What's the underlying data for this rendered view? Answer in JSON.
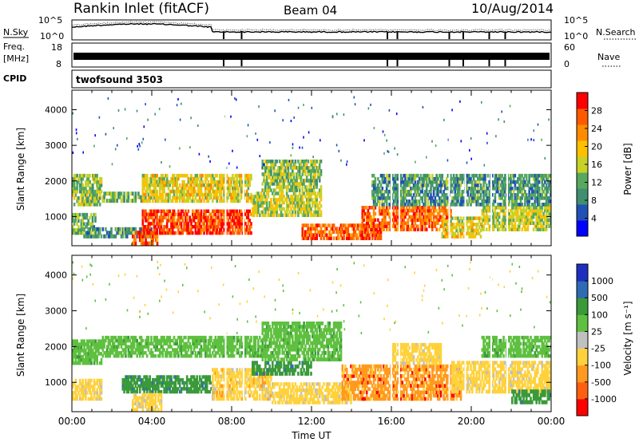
{
  "header": {
    "station": "Rankin Inlet (fitACF)",
    "beam": "Beam 04",
    "date": "10/Aug/2014"
  },
  "panels": {
    "nsky_label": "N.Sky",
    "nsky_ticks": [
      "10^5",
      "10^0"
    ],
    "nsearch_label": "N.Search",
    "freq_label": "Freq.",
    "freq_unit": "[MHz]",
    "freq_ticks": [
      "18",
      "8"
    ],
    "nave_label": "Nave",
    "nave_ticks": [
      "60",
      "0"
    ],
    "cpid_label": "CPID",
    "cpid_value": "twofsound 3503"
  },
  "colors": {
    "power": [
      "#0000ff",
      "#2151b4",
      "#3f8f70",
      "#57a95f",
      "#c8d226",
      "#ffc000",
      "#ff8c00",
      "#ff5a00",
      "#ff0000"
    ],
    "velocity": [
      "#1e2fbf",
      "#2e6bb4",
      "#3a9a3a",
      "#5fc040",
      "#c0c0c0",
      "#ffd23c",
      "#ff9a1e",
      "#ff6010",
      "#ff0000"
    ]
  },
  "chart_data": [
    {
      "type": "heatmap",
      "quantity": "power",
      "ylabel": "Slant Range [km]",
      "xlabel": "",
      "ylim": [
        180,
        4550
      ],
      "y_ticks": [
        "1000",
        "2000",
        "3000",
        "4000"
      ],
      "colorbar_label": "Power [dB]",
      "colorbar_ticks": [
        "4",
        "8",
        "12",
        "16",
        "20",
        "24",
        "28"
      ],
      "colorbar_range": [
        0,
        32
      ],
      "bands": [
        {
          "t0": 0.0,
          "t1": 1.2,
          "r0": 500,
          "r1": 1100,
          "level": 12
        },
        {
          "t0": 0.0,
          "t1": 1.5,
          "r0": 1300,
          "r1": 2200,
          "level": 14
        },
        {
          "t0": 0.5,
          "t1": 4.0,
          "r0": 400,
          "r1": 700,
          "level": 10
        },
        {
          "t0": 1.5,
          "t1": 3.5,
          "r0": 1400,
          "r1": 1700,
          "level": 12
        },
        {
          "t0": 3.0,
          "t1": 4.3,
          "r0": 200,
          "r1": 600,
          "level": 26
        },
        {
          "t0": 3.5,
          "t1": 9.0,
          "r0": 500,
          "r1": 1200,
          "level": 28
        },
        {
          "t0": 3.5,
          "t1": 9.0,
          "r0": 1400,
          "r1": 2200,
          "level": 18
        },
        {
          "t0": 9.0,
          "t1": 12.5,
          "r0": 1000,
          "r1": 1700,
          "level": 16
        },
        {
          "t0": 9.5,
          "t1": 12.5,
          "r0": 1700,
          "r1": 2600,
          "level": 14
        },
        {
          "t0": 11.5,
          "t1": 15.5,
          "r0": 350,
          "r1": 800,
          "level": 26
        },
        {
          "t0": 14.5,
          "t1": 19.0,
          "r0": 600,
          "r1": 1300,
          "level": 26
        },
        {
          "t0": 18.5,
          "t1": 20.5,
          "r0": 400,
          "r1": 1000,
          "level": 18
        },
        {
          "t0": 20.5,
          "t1": 24.0,
          "r0": 600,
          "r1": 1300,
          "level": 16
        },
        {
          "t0": 15.0,
          "t1": 24.0,
          "r0": 1300,
          "r1": 2200,
          "level": 10
        }
      ]
    },
    {
      "type": "heatmap",
      "quantity": "velocity",
      "ylabel": "Slant Range [km]",
      "xlabel": "Time UT",
      "ylim": [
        180,
        4550
      ],
      "y_ticks": [
        "1000",
        "2000",
        "3000",
        "4000"
      ],
      "x_ticks": [
        "00:00",
        "04:00",
        "08:00",
        "12:00",
        "16:00",
        "20:00",
        "00:00"
      ],
      "xlim": [
        0,
        24
      ],
      "colorbar_label": "Velocity [m s⁻¹]",
      "colorbar_ticks": [
        "1000",
        "500",
        "100",
        "25",
        "-25",
        "-100",
        "-500",
        "-1000"
      ],
      "bands": [
        {
          "t0": 0.0,
          "t1": 1.5,
          "r0": 1500,
          "r1": 2200,
          "level": 25
        },
        {
          "t0": 0.0,
          "t1": 1.5,
          "r0": 500,
          "r1": 1100,
          "level": -100
        },
        {
          "t0": 1.5,
          "t1": 9.5,
          "r0": 1700,
          "r1": 2300,
          "level": 25
        },
        {
          "t0": 2.5,
          "t1": 7.0,
          "r0": 700,
          "r1": 1200,
          "level": 100
        },
        {
          "t0": 3.0,
          "t1": 4.5,
          "r0": 200,
          "r1": 700,
          "level": -100
        },
        {
          "t0": 7.0,
          "t1": 10.0,
          "r0": 500,
          "r1": 1400,
          "level": -300
        },
        {
          "t0": 9.0,
          "t1": 12.0,
          "r0": 1200,
          "r1": 1600,
          "level": 100
        },
        {
          "t0": 9.5,
          "t1": 13.5,
          "r0": 1600,
          "r1": 2700,
          "level": 25
        },
        {
          "t0": 10.0,
          "t1": 14.0,
          "r0": 400,
          "r1": 1000,
          "level": -100
        },
        {
          "t0": 13.5,
          "t1": 19.5,
          "r0": 500,
          "r1": 1500,
          "level": -500
        },
        {
          "t0": 16.0,
          "t1": 18.5,
          "r0": 1500,
          "r1": 2100,
          "level": -100
        },
        {
          "t0": 19.0,
          "t1": 24.0,
          "r0": 700,
          "r1": 1600,
          "level": -100
        },
        {
          "t0": 20.5,
          "t1": 24.0,
          "r0": 1700,
          "r1": 2300,
          "level": 25
        },
        {
          "t0": 22.0,
          "t1": 24.0,
          "r0": 400,
          "r1": 800,
          "level": 100
        }
      ]
    }
  ]
}
